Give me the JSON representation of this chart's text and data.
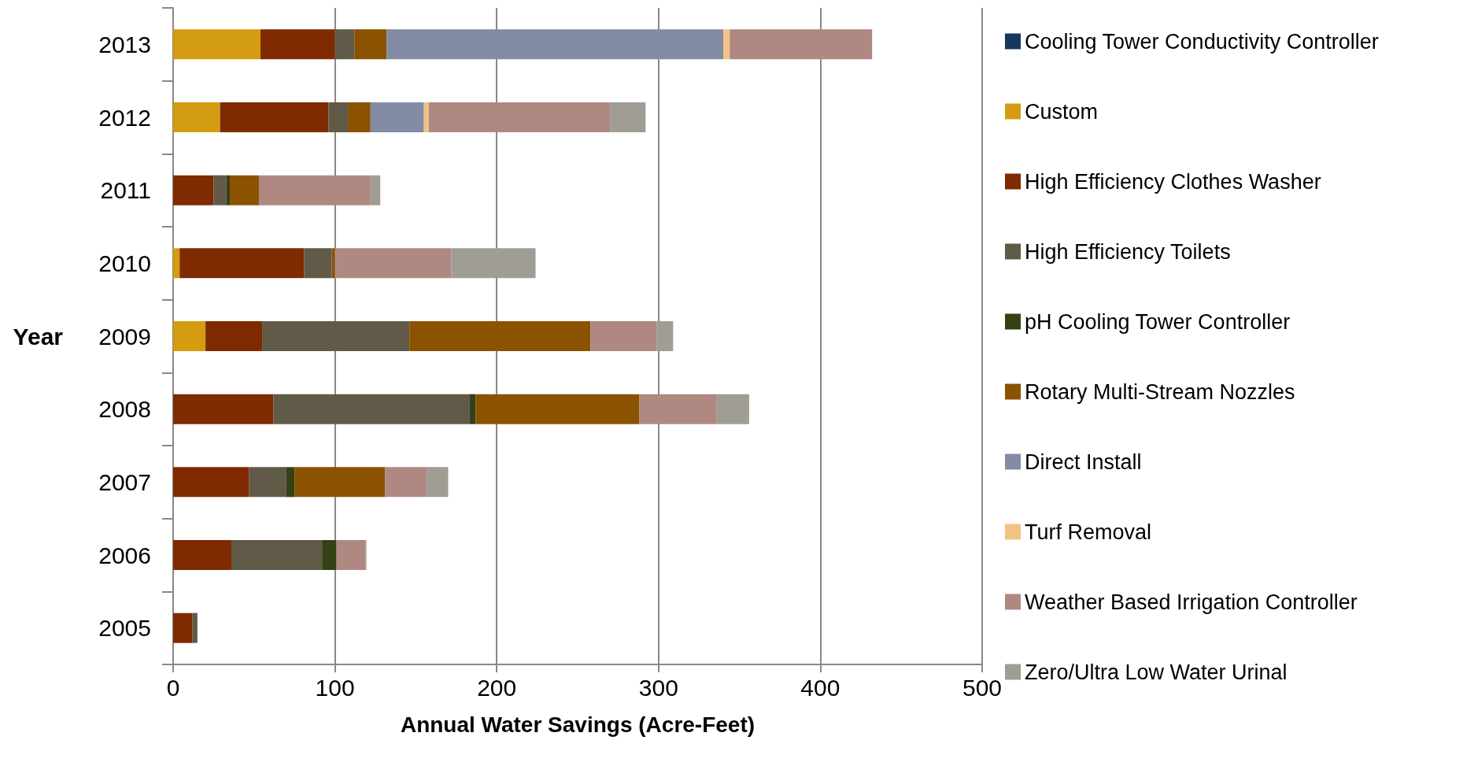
{
  "chart_data": {
    "type": "bar",
    "orientation": "horizontal",
    "stacked": true,
    "categories": [
      "2013",
      "2012",
      "2011",
      "2010",
      "2009",
      "2008",
      "2007",
      "2006",
      "2005"
    ],
    "xlabel": "Annual Water Savings (Acre-Feet)",
    "ylabel": "Year",
    "xlim": [
      0,
      500
    ],
    "xticks": [
      0,
      100,
      200,
      300,
      400,
      500
    ],
    "grid": "x",
    "legend": "right",
    "series": [
      {
        "name": "Cooling Tower Conductivity Controller",
        "color": "#17375e",
        "values": [
          null,
          null,
          null,
          null,
          null,
          null,
          null,
          null,
          null
        ]
      },
      {
        "name": "Custom",
        "color": "#d49c10",
        "values": [
          54,
          29,
          null,
          4,
          20,
          null,
          null,
          null,
          null
        ]
      },
      {
        "name": "High Efficiency Clothes Washer",
        "color": "#7f2a00",
        "values": [
          46,
          67,
          25,
          77,
          35,
          62,
          47,
          36,
          12
        ]
      },
      {
        "name": "High Efficiency Toilets",
        "color": "#615a48",
        "values": [
          12,
          12,
          8,
          17,
          91,
          121,
          23,
          56,
          3
        ]
      },
      {
        "name": "pH Cooling Tower Controller",
        "color": "#344015",
        "values": [
          null,
          null,
          2,
          null,
          null,
          4,
          5,
          9,
          null
        ]
      },
      {
        "name": "Rotary Multi-Stream Nozzles",
        "color": "#8b5200",
        "values": [
          20,
          14,
          18,
          2,
          112,
          101,
          56,
          null,
          null
        ]
      },
      {
        "name": "Direct Install",
        "color": "#838ba5",
        "values": [
          208,
          33,
          null,
          null,
          null,
          null,
          null,
          null,
          null
        ]
      },
      {
        "name": "Turf Removal",
        "color": "#f2c384",
        "values": [
          4,
          3,
          null,
          null,
          null,
          null,
          null,
          null,
          null
        ]
      },
      {
        "name": "Weather Based Irrigation Controller",
        "color": "#b08882",
        "values": [
          88,
          112,
          69,
          72,
          41,
          48,
          26,
          18,
          null
        ]
      },
      {
        "name": "Zero/Ultra Low Water Urinal",
        "color": "#a09d95",
        "values": [
          null,
          22,
          6,
          52,
          10,
          20,
          13,
          0.5,
          null
        ]
      }
    ]
  }
}
